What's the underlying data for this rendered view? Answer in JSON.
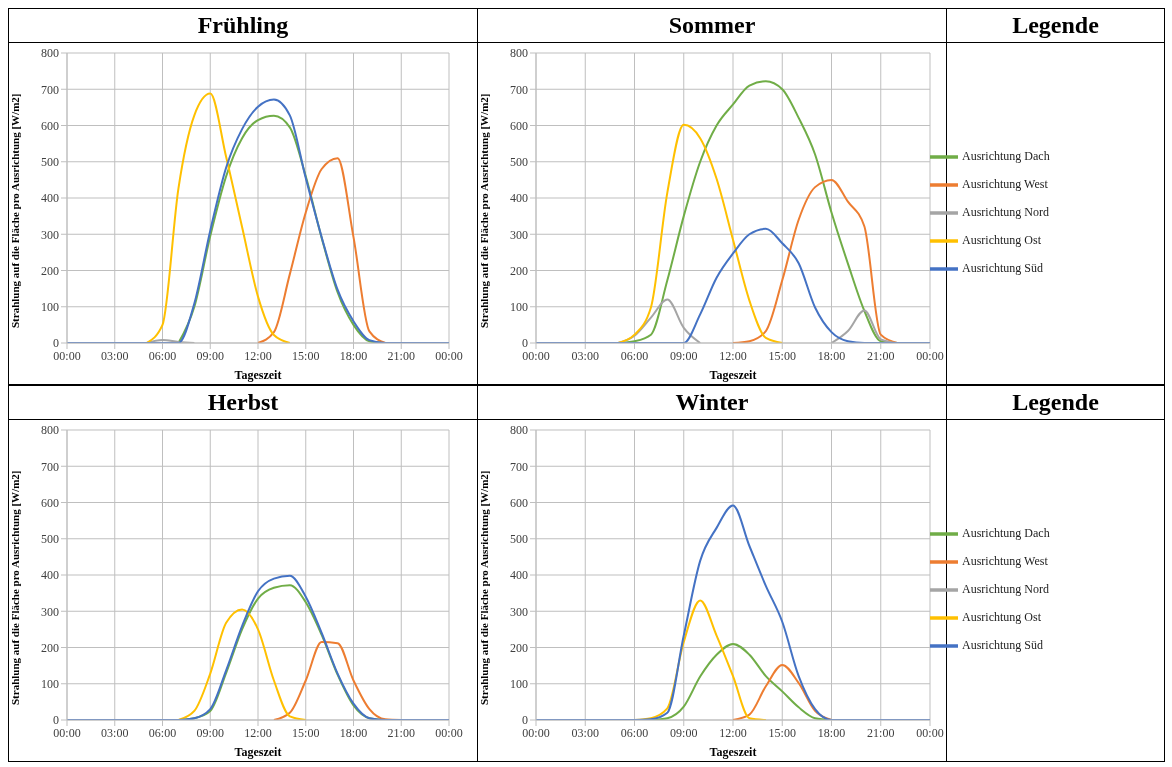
{
  "chart_data": [
    {
      "type": "line",
      "title": "Frühling",
      "xlabel": "Tageszeit",
      "ylabel": "Strahlung auf die Fläche pro Ausrichtung [W/m2]",
      "x": [
        0,
        1,
        2,
        3,
        4,
        5,
        6,
        7,
        8,
        9,
        10,
        11,
        12,
        13,
        14,
        15,
        16,
        17,
        18,
        19,
        20,
        21,
        22,
        23,
        24
      ],
      "xlim": [
        0,
        24
      ],
      "xticks": [
        {
          "value": 0,
          "label": "00:00"
        },
        {
          "value": 3,
          "label": "03:00"
        },
        {
          "value": 6,
          "label": "06:00"
        },
        {
          "value": 9,
          "label": "09:00"
        },
        {
          "value": 12,
          "label": "12:00"
        },
        {
          "value": 15,
          "label": "15:00"
        },
        {
          "value": 18,
          "label": "18:00"
        },
        {
          "value": 21,
          "label": "21:00"
        },
        {
          "value": 24,
          "label": "00:00"
        }
      ],
      "ylim": [
        0,
        800
      ],
      "yticks": [
        0,
        100,
        200,
        300,
        400,
        500,
        600,
        700,
        800
      ],
      "grid": true,
      "legend": false,
      "series": [
        {
          "color": "#70ad47",
          "values": [
            null,
            null,
            null,
            null,
            null,
            null,
            null,
            0,
            100,
            295,
            460,
            565,
            615,
            627,
            595,
            460,
            290,
            140,
            50,
            5,
            0,
            null,
            null,
            null,
            null
          ]
        },
        {
          "color": "#ed7d31",
          "values": [
            null,
            null,
            null,
            null,
            null,
            null,
            null,
            null,
            null,
            null,
            null,
            null,
            0,
            30,
            190,
            360,
            480,
            510,
            292,
            32,
            0,
            null,
            null,
            null,
            null
          ]
        },
        {
          "color": "#a5a5a5",
          "values": [
            null,
            null,
            null,
            null,
            null,
            0,
            8,
            3,
            0,
            null,
            null,
            null,
            null,
            null,
            null,
            null,
            null,
            null,
            null,
            null,
            null,
            null,
            null,
            null,
            null
          ]
        },
        {
          "color": "#ffc000",
          "values": [
            null,
            null,
            null,
            null,
            null,
            0,
            50,
            426,
            628,
            688,
            513,
            320,
            128,
            22,
            0,
            null,
            null,
            null,
            null,
            null,
            null,
            null,
            null,
            null,
            null
          ]
        },
        {
          "color": "#4472c4",
          "values": [
            0,
            0,
            0,
            0,
            0,
            0,
            0,
            0,
            109,
            310,
            484,
            590,
            652,
            672,
            628,
            455,
            292,
            147,
            60,
            8,
            0,
            0,
            0,
            0,
            0
          ]
        }
      ]
    },
    {
      "type": "line",
      "title": "Sommer",
      "xlabel": "Tageszeit",
      "ylabel": "Strahlung auf die Fläche pro Ausrichtung [W/m2]",
      "x": [
        0,
        1,
        2,
        3,
        4,
        5,
        6,
        7,
        8,
        9,
        10,
        11,
        12,
        13,
        14,
        15,
        16,
        17,
        18,
        19,
        20,
        21,
        22,
        23,
        24
      ],
      "xlim": [
        0,
        24
      ],
      "xticks": [
        {
          "value": 0,
          "label": "00:00"
        },
        {
          "value": 3,
          "label": "03:00"
        },
        {
          "value": 6,
          "label": "06:00"
        },
        {
          "value": 9,
          "label": "09:00"
        },
        {
          "value": 12,
          "label": "12:00"
        },
        {
          "value": 15,
          "label": "15:00"
        },
        {
          "value": 18,
          "label": "18:00"
        },
        {
          "value": 21,
          "label": "21:00"
        },
        {
          "value": 24,
          "label": "00:00"
        }
      ],
      "ylim": [
        0,
        800
      ],
      "yticks": [
        0,
        100,
        200,
        300,
        400,
        500,
        600,
        700,
        800
      ],
      "grid": true,
      "legend": "right",
      "legend_title": "Legende",
      "series": [
        {
          "name": "Ausrichtung Dach",
          "color": "#70ad47",
          "values": [
            null,
            null,
            null,
            null,
            null,
            0,
            5,
            23,
            173,
            350,
            500,
            600,
            658,
            710,
            722,
            700,
            621,
            520,
            360,
            219,
            89,
            5,
            0,
            null,
            null
          ]
        },
        {
          "name": "Ausrichtung West",
          "color": "#ed7d31",
          "values": [
            null,
            null,
            null,
            null,
            null,
            null,
            null,
            null,
            null,
            null,
            null,
            null,
            0,
            5,
            33,
            173,
            340,
            430,
            450,
            390,
            322,
            23,
            0,
            null,
            null
          ]
        },
        {
          "name": "Ausrichtung Nord",
          "color": "#a5a5a5",
          "values": [
            null,
            null,
            null,
            null,
            null,
            0,
            20,
            70,
            120,
            42,
            0,
            null,
            null,
            null,
            null,
            null,
            null,
            null,
            0,
            33,
            90,
            10,
            0,
            null,
            null
          ]
        },
        {
          "name": "Ausrichtung Ost",
          "color": "#ffc000",
          "values": [
            null,
            null,
            null,
            null,
            null,
            0,
            23,
            98,
            415,
            602,
            565,
            453,
            285,
            117,
            14,
            0,
            null,
            null,
            null,
            null,
            null,
            null,
            null,
            null,
            null
          ]
        },
        {
          "name": "Ausrichtung Süd",
          "color": "#4472c4",
          "values": [
            0,
            0,
            0,
            0,
            0,
            0,
            0,
            0,
            0,
            0,
            79,
            180,
            247,
            300,
            315,
            275,
            220,
            98,
            30,
            5,
            0,
            0,
            0,
            0,
            0
          ]
        }
      ]
    },
    {
      "type": "line",
      "title": "Herbst",
      "xlabel": "Tageszeit",
      "ylabel": "Strahlung auf die Fläche pro Ausrichtung [W/m2]",
      "x": [
        0,
        1,
        2,
        3,
        4,
        5,
        6,
        7,
        8,
        9,
        10,
        11,
        12,
        13,
        14,
        15,
        16,
        17,
        18,
        19,
        20,
        21,
        22,
        23,
        24
      ],
      "xlim": [
        0,
        24
      ],
      "xticks": [
        {
          "value": 0,
          "label": "00:00"
        },
        {
          "value": 3,
          "label": "03:00"
        },
        {
          "value": 6,
          "label": "06:00"
        },
        {
          "value": 9,
          "label": "09:00"
        },
        {
          "value": 12,
          "label": "12:00"
        },
        {
          "value": 15,
          "label": "15:00"
        },
        {
          "value": 18,
          "label": "18:00"
        },
        {
          "value": 21,
          "label": "21:00"
        },
        {
          "value": 24,
          "label": "00:00"
        }
      ],
      "ylim": [
        0,
        800
      ],
      "yticks": [
        0,
        100,
        200,
        300,
        400,
        500,
        600,
        700,
        800
      ],
      "grid": true,
      "legend": false,
      "series": [
        {
          "color": "#70ad47",
          "values": [
            null,
            null,
            null,
            null,
            null,
            null,
            null,
            0,
            5,
            25,
            130,
            250,
            335,
            365,
            372,
            325,
            235,
            125,
            40,
            5,
            0,
            null,
            null,
            null,
            null
          ]
        },
        {
          "color": "#ed7d31",
          "values": [
            null,
            null,
            null,
            null,
            null,
            null,
            null,
            null,
            null,
            null,
            null,
            null,
            null,
            0,
            20,
            109,
            215,
            212,
            109,
            30,
            2,
            0,
            null,
            null,
            null
          ]
        },
        {
          "color": "#ffc000",
          "values": [
            null,
            null,
            null,
            null,
            null,
            null,
            null,
            0,
            25,
            128,
            268,
            305,
            250,
            109,
            10,
            0,
            null,
            null,
            null,
            null,
            null,
            null,
            null,
            null,
            null
          ]
        },
        {
          "color": "#4472c4",
          "values": [
            0,
            0,
            0,
            0,
            0,
            0,
            0,
            0,
            5,
            30,
            137,
            259,
            355,
            390,
            398,
            340,
            240,
            128,
            45,
            5,
            0,
            0,
            0,
            0,
            0
          ]
        }
      ]
    },
    {
      "type": "line",
      "title": "Winter",
      "xlabel": "Tageszeit",
      "ylabel": "Strahlung auf die Fläche pro Ausrichtung [W/m2]",
      "x": [
        0,
        1,
        2,
        3,
        4,
        5,
        6,
        7,
        8,
        9,
        10,
        11,
        12,
        13,
        14,
        15,
        16,
        17,
        18,
        19,
        20,
        21,
        22,
        23,
        24
      ],
      "xlim": [
        0,
        24
      ],
      "xticks": [
        {
          "value": 0,
          "label": "00:00"
        },
        {
          "value": 3,
          "label": "03:00"
        },
        {
          "value": 6,
          "label": "06:00"
        },
        {
          "value": 9,
          "label": "09:00"
        },
        {
          "value": 12,
          "label": "12:00"
        },
        {
          "value": 15,
          "label": "15:00"
        },
        {
          "value": 18,
          "label": "18:00"
        },
        {
          "value": 21,
          "label": "21:00"
        },
        {
          "value": 24,
          "label": "00:00"
        }
      ],
      "ylim": [
        0,
        800
      ],
      "yticks": [
        0,
        100,
        200,
        300,
        400,
        500,
        600,
        700,
        800
      ],
      "grid": true,
      "legend": "right",
      "legend_title": "Legende",
      "series": [
        {
          "name": "Ausrichtung Dach",
          "color": "#70ad47",
          "values": [
            null,
            null,
            null,
            null,
            null,
            null,
            null,
            0,
            5,
            37,
            120,
            180,
            210,
            180,
            121,
            79,
            35,
            5,
            0,
            null,
            null,
            null,
            null,
            null,
            null
          ]
        },
        {
          "name": "Ausrichtung West",
          "color": "#ed7d31",
          "values": [
            null,
            null,
            null,
            null,
            null,
            null,
            null,
            null,
            null,
            null,
            null,
            null,
            0,
            15,
            93,
            152,
            102,
            25,
            0,
            null,
            null,
            null,
            null,
            null,
            null
          ]
        },
        {
          "name": "Ausrichtung Nord",
          "color": "#a5a5a5",
          "values": [
            null,
            null,
            null,
            null,
            null,
            null,
            null,
            null,
            null,
            null,
            null,
            null,
            null,
            null,
            null,
            null,
            null,
            null,
            null,
            null,
            null,
            null,
            null,
            null,
            null
          ]
        },
        {
          "name": "Ausrichtung Ost",
          "color": "#ffc000",
          "values": [
            null,
            null,
            null,
            null,
            null,
            null,
            0,
            5,
            32,
            215,
            330,
            233,
            121,
            5,
            0,
            null,
            null,
            null,
            null,
            null,
            null,
            null,
            null,
            null,
            null
          ]
        },
        {
          "name": "Ausrichtung Süd",
          "color": "#4472c4",
          "values": [
            0,
            0,
            0,
            0,
            0,
            0,
            0,
            2,
            20,
            233,
            439,
            530,
            592,
            480,
            370,
            271,
            121,
            30,
            0,
            0,
            0,
            0,
            0,
            0,
            0
          ]
        }
      ]
    }
  ]
}
